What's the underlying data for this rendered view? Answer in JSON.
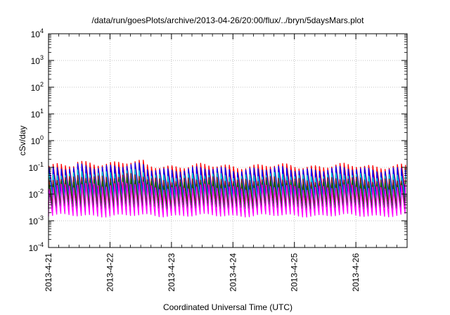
{
  "chart_data": {
    "type": "line",
    "title": "/data/run/goesPlots/archive/2013-04-26/20:00/flux/../bryn/5daysMars.plot",
    "xlabel": "Coordinated Universal Time (UTC)",
    "ylabel": "cSv/day",
    "y_scale": "log",
    "ylim": [
      0.0001,
      10000
    ],
    "xlim": [
      "2013-04-21 00:00",
      "2013-04-26 20:00"
    ],
    "grid": true,
    "legend": "none",
    "y_ticks": [
      {
        "base": "10",
        "exp": "4"
      },
      {
        "base": "10",
        "exp": "3"
      },
      {
        "base": "10",
        "exp": "2"
      },
      {
        "base": "10",
        "exp": "1"
      },
      {
        "base": "10",
        "exp": "0"
      },
      {
        "base": "10",
        "exp": "-1"
      },
      {
        "base": "10",
        "exp": "-2"
      },
      {
        "base": "10",
        "exp": "-3"
      },
      {
        "base": "10",
        "exp": "-4"
      }
    ],
    "x_ticks": [
      "2013-4-21",
      "2013-4-22",
      "2013-4-23",
      "2013-4-24",
      "2013-4-25",
      "2013-4-26"
    ],
    "orbit_cycles_per_day": 15,
    "series": [
      {
        "color": "#ff0000",
        "peak": 0.11,
        "trough": 0.012
      },
      {
        "color": "#0000ff",
        "peak": 0.085,
        "trough": 0.009
      },
      {
        "color": "#00cccc",
        "peak": 0.05,
        "trough": 0.006
      },
      {
        "color": "#8b1a1a",
        "peak": 0.035,
        "trough": 0.004
      },
      {
        "color": "#006400",
        "peak": 0.025,
        "trough": 0.003
      },
      {
        "color": "#ff00ff",
        "peak": 0.018,
        "trough": 0.0016
      }
    ]
  }
}
